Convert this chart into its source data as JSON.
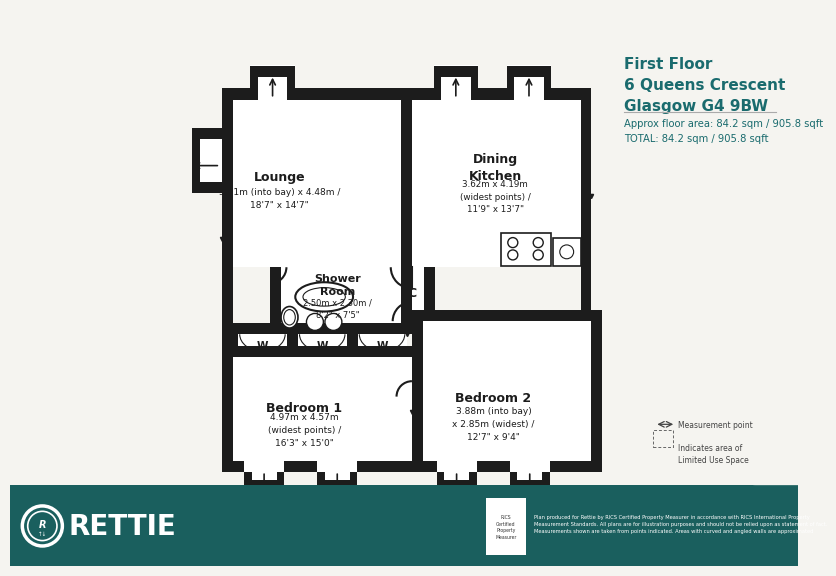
{
  "title_line1": "First Floor",
  "title_line2": "6 Queens Crescent",
  "title_line3": "Glasgow G4 9BW",
  "area_line1": "Approx floor area: 84.2 sqm / 905.8 sqft",
  "area_line2": "TOTAL: 84.2 sqm / 905.8 sqft",
  "teal_color": "#1a6b6e",
  "wall_color": "#1c1c1c",
  "bg_color": "#f5f4f0",
  "footer_color": "#1a5f5e",
  "lounge_label": "Lounge",
  "lounge_sub": "5.71m (into bay) x 4.48m /\n18'7\" x 14'7\"",
  "kitchen_label": "Dining\nKitchen",
  "kitchen_sub": "3.62m x 4.19m\n(widest points) /\n11'9\" x 13'7\"",
  "shower_label": "Shower\nRoom",
  "shower_sub": "2.50m x 2.30m /\n8'2\" x 7'5\"",
  "bed1_label": "Bedroom 1",
  "bed1_sub": "4.97m x 4.57m\n(widest points) /\n16'3\" x 15'0\"",
  "bed2_label": "Bedroom 2",
  "bed2_sub": "3.88m (into bay)\nx 2.85m (widest) /\n12'7\" x 9'4\"",
  "corridor_label": "C",
  "legend_mp": "Measurement point",
  "legend_lu": "Indicates area of\nLimited Use Space",
  "disclaimer": "Plan produced for Rettie by RICS Certified Property Measurer in accordance with RICS International Property\nMeasurement Standards. All plans are for illustration purposes and should not be relied upon as statement of fact.\nMeasurements shown are taken from points indicated. Areas with curved and angled walls are approximated"
}
